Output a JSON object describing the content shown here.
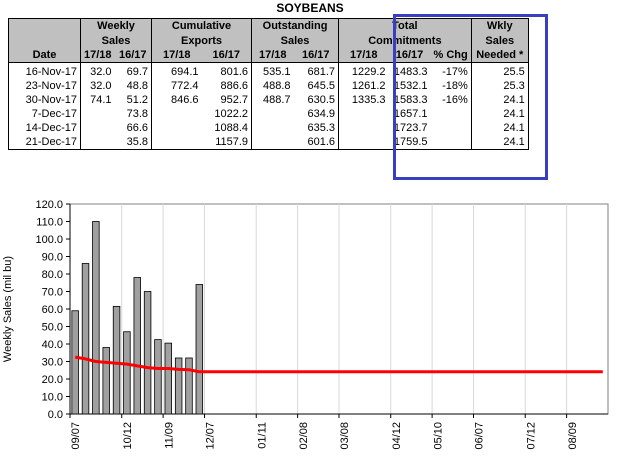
{
  "title": "SOYBEANS",
  "table": {
    "group_headers": [
      {
        "line1": "",
        "line2": "Date"
      },
      {
        "line1": "Weekly",
        "line2": "Sales"
      },
      {
        "line1": "Cumulative",
        "line2": "Exports"
      },
      {
        "line1": "Outstanding",
        "line2": "Sales"
      },
      {
        "line1": "Total",
        "line2": "Commitments"
      },
      {
        "line1": "Wkly",
        "line2": "Sales",
        "line3": "Needed *"
      }
    ],
    "sub_headers": [
      "17/18",
      "16/17",
      "17/18",
      "16/17",
      "17/18",
      "16/17",
      "17/18",
      "16/17",
      "% Chg"
    ],
    "rows": [
      {
        "date": "16-Nov-17",
        "ws_a": "32.0",
        "ws_b": "69.7",
        "ce_a": "694.1",
        "ce_b": "801.6",
        "os_a": "535.1",
        "os_b": "681.7",
        "tc_a": "1229.2",
        "tc_b": "1483.3",
        "chg": "-17%",
        "need": "25.5"
      },
      {
        "date": "23-Nov-17",
        "ws_a": "32.0",
        "ws_b": "48.8",
        "ce_a": "772.4",
        "ce_b": "886.6",
        "os_a": "488.8",
        "os_b": "645.5",
        "tc_a": "1261.2",
        "tc_b": "1532.1",
        "chg": "-18%",
        "need": "25.3"
      },
      {
        "date": "30-Nov-17",
        "ws_a": "74.1",
        "ws_b": "51.2",
        "ce_a": "846.6",
        "ce_b": "952.7",
        "os_a": "488.7",
        "os_b": "630.5",
        "tc_a": "1335.3",
        "tc_b": "1583.3",
        "chg": "-16%",
        "need": "24.1"
      },
      {
        "date": "7-Dec-17",
        "ws_a": "",
        "ws_b": "73.8",
        "ce_a": "",
        "ce_b": "1022.2",
        "os_a": "",
        "os_b": "634.9",
        "tc_a": "",
        "tc_b": "1657.1",
        "chg": "",
        "need": "24.1"
      },
      {
        "date": "14-Dec-17",
        "ws_a": "",
        "ws_b": "66.6",
        "ce_a": "",
        "ce_b": "1088.4",
        "os_a": "",
        "os_b": "635.3",
        "tc_a": "",
        "tc_b": "1723.7",
        "chg": "",
        "need": "24.1"
      },
      {
        "date": "21-Dec-17",
        "ws_a": "",
        "ws_b": "35.8",
        "ce_a": "",
        "ce_b": "1157.9",
        "os_a": "",
        "os_b": "601.6",
        "tc_a": "",
        "tc_b": "1759.5",
        "chg": "",
        "need": "24.1"
      }
    ]
  },
  "colors": {
    "bar_fill": "#a0a0a0",
    "line": "#ff0000",
    "highlight_box": "#3a3fbf",
    "header_bg": "#c0c0c0",
    "grid": "#d9d9d9"
  },
  "chart_data": {
    "type": "bar",
    "ylabel": "Weekly Sales (mil bu)",
    "ylim": [
      0,
      120
    ],
    "yticks": [
      "0.0",
      "10.0",
      "20.0",
      "30.0",
      "40.0",
      "50.0",
      "60.0",
      "70.0",
      "80.0",
      "90.0",
      "100.0",
      "110.0",
      "120.0"
    ],
    "xtick_labels": [
      "09/07",
      "10/12",
      "11/09",
      "12/07",
      "01/11",
      "02/08",
      "03/08",
      "04/12",
      "05/10",
      "06/07",
      "07/12",
      "08/09"
    ],
    "xtick_weeks": [
      0,
      5,
      9,
      13,
      18,
      22,
      26,
      31,
      35,
      39,
      44,
      48
    ],
    "n_weeks": 52,
    "grid": true,
    "series": [
      {
        "type": "bar",
        "values": [
          59,
          86,
          110,
          38,
          61.5,
          47,
          78,
          70,
          42.5,
          40.5,
          32,
          32,
          74
        ]
      },
      {
        "type": "line",
        "values": [
          32.5,
          31.5,
          30,
          29.5,
          29,
          28.5,
          27.5,
          26.5,
          26,
          26,
          25.5,
          25.3,
          24.1,
          24.1,
          24.1,
          24.1,
          24.1,
          24.1,
          24.1,
          24.1,
          24.1,
          24.1,
          24.1,
          24.1,
          24.1,
          24.1,
          24.1,
          24.1,
          24.1,
          24.1,
          24.1,
          24.1,
          24.1,
          24.1,
          24.1,
          24.1,
          24.1,
          24.1,
          24.1,
          24.1,
          24.1,
          24.1,
          24.1,
          24.1,
          24.1,
          24.1,
          24.1,
          24.1,
          24.1,
          24.1,
          24.1,
          24.1
        ]
      }
    ]
  }
}
